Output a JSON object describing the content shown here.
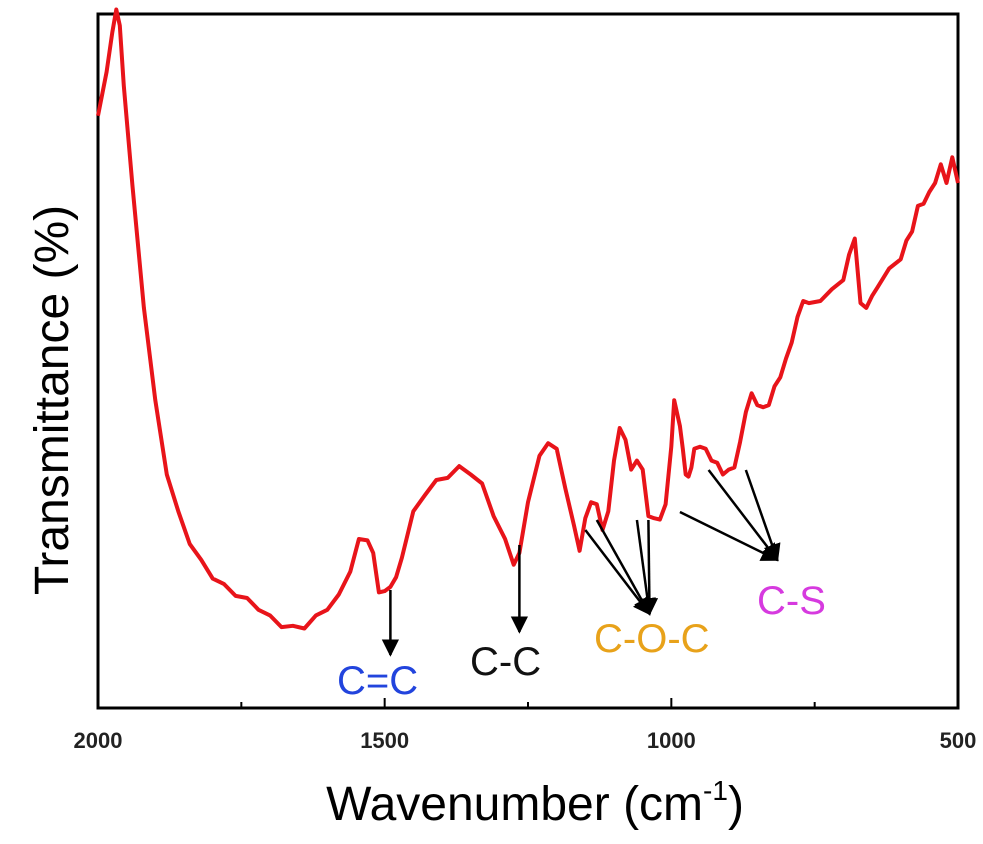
{
  "chart_data": {
    "type": "line",
    "xlabel": "Wavenumber (cm",
    "xlabel_sup": "-1",
    "xlabel_close": ")",
    "ylabel": "Transmittance (%)",
    "xlim": [
      2000,
      500
    ],
    "ylim": [
      0,
      100
    ],
    "x_ticks": [
      2000,
      1500,
      1000,
      500
    ],
    "grid": false,
    "series": [
      {
        "color": "#e8141a",
        "x": [
          2000,
          1985,
          1975,
          1968,
          1962,
          1955,
          1940,
          1920,
          1900,
          1880,
          1860,
          1840,
          1820,
          1800,
          1780,
          1760,
          1740,
          1720,
          1700,
          1680,
          1660,
          1640,
          1620,
          1600,
          1580,
          1560,
          1545,
          1530,
          1520,
          1510,
          1500,
          1490,
          1480,
          1470,
          1450,
          1430,
          1410,
          1390,
          1370,
          1350,
          1330,
          1310,
          1290,
          1275,
          1265,
          1250,
          1230,
          1215,
          1200,
          1185,
          1170,
          1160,
          1150,
          1140,
          1130,
          1120,
          1110,
          1100,
          1090,
          1080,
          1070,
          1060,
          1050,
          1040,
          1030,
          1020,
          1010,
          1000,
          995,
          985,
          980,
          975,
          970,
          965,
          960,
          950,
          940,
          930,
          920,
          910,
          900,
          890,
          880,
          870,
          860,
          850,
          840,
          830,
          820,
          810,
          800,
          790,
          780,
          770,
          760,
          740,
          720,
          700,
          690,
          680,
          670,
          660,
          650,
          640,
          620,
          600,
          590,
          580,
          570,
          560,
          550,
          540,
          530,
          520,
          510,
          500
        ],
        "y": [
          85,
          92,
          97,
          101,
          98,
          90,
          75,
          58,
          44,
          34,
          28,
          24,
          21,
          19,
          17.5,
          16.5,
          15.5,
          14.5,
          13,
          12,
          11.5,
          11.8,
          13,
          14.5,
          16,
          20,
          24,
          24.5,
          22,
          17,
          16.5,
          17.8,
          18.5,
          22,
          28,
          31,
          32.5,
          33.5,
          34.5,
          34,
          32,
          28,
          24,
          21,
          22,
          30,
          36,
          38.5,
          37,
          32,
          26,
          23,
          27,
          30,
          29,
          26,
          28,
          36,
          40,
          39,
          34,
          36,
          34,
          28,
          27,
          27.5,
          29,
          38,
          44,
          41,
          37,
          34,
          33,
          35,
          37,
          38,
          37,
          36,
          35,
          34,
          34,
          35,
          38,
          43,
          45,
          44,
          43,
          44,
          46,
          48,
          50,
          53,
          56,
          59,
          58,
          59,
          60,
          62,
          65,
          68,
          58,
          58,
          59,
          61,
          63,
          65,
          67,
          69,
          72,
          73,
          74,
          76,
          78,
          76,
          79,
          76
        ]
      }
    ],
    "annotations": [
      {
        "text": "C=C",
        "color": "#2244dd"
      },
      {
        "text": "C-C",
        "color": "#111111"
      },
      {
        "text": "C-O-C",
        "color": "#e8a21a"
      },
      {
        "text": "C-S",
        "color": "#d63adf"
      }
    ]
  }
}
